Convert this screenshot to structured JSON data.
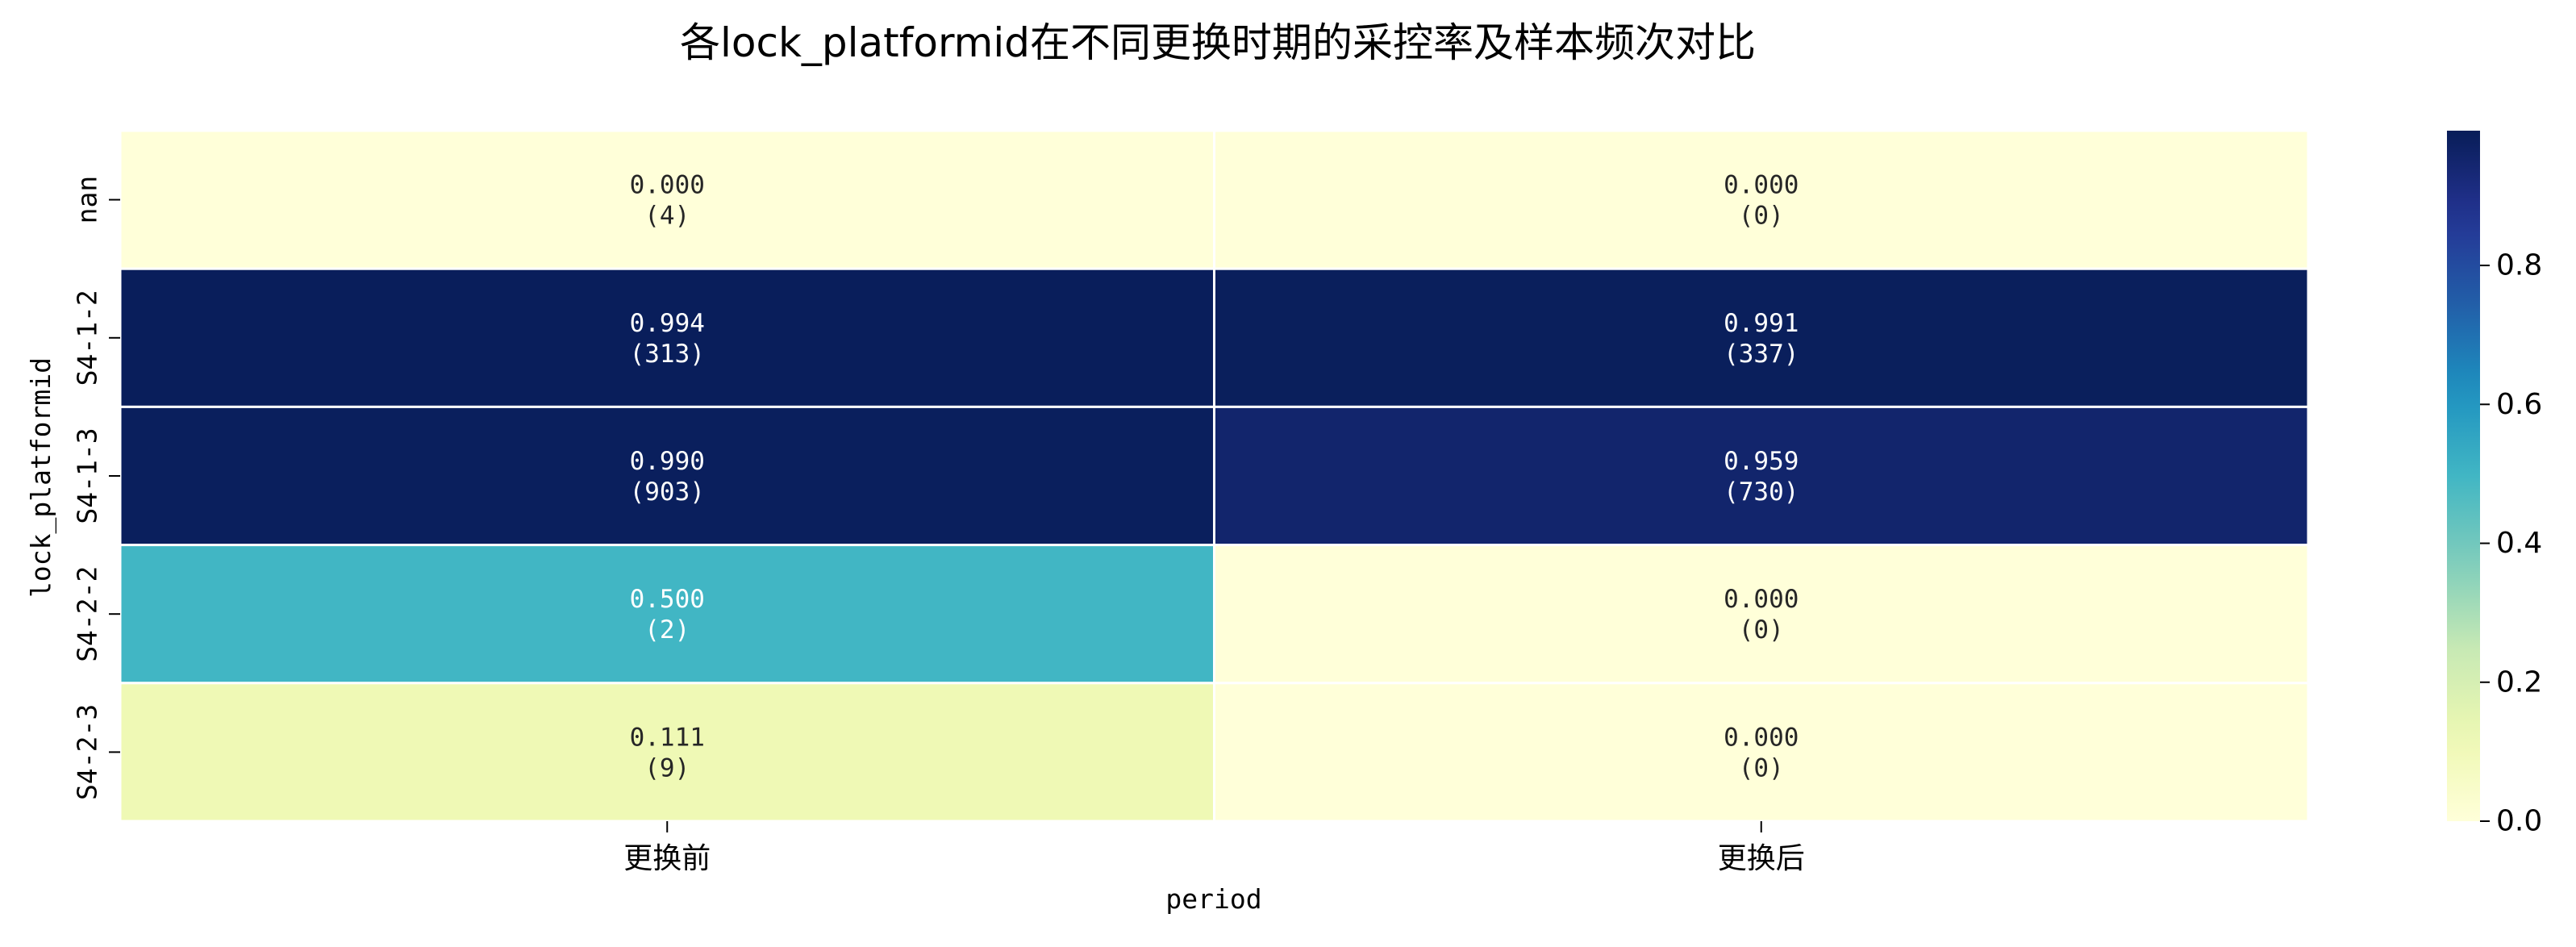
{
  "chart_data": {
    "type": "heatmap",
    "title": "各lock_platformid在不同更换时期的采控率及样本频次对比",
    "xlabel": "period",
    "ylabel": "lock_platformid",
    "x": [
      "更换前",
      "更换后"
    ],
    "y": [
      "nan",
      "S4-1-2",
      "S4-1-3",
      "S4-2-2",
      "S4-2-3"
    ],
    "values": [
      [
        0.0,
        0.0
      ],
      [
        0.994,
        0.991
      ],
      [
        0.99,
        0.959
      ],
      [
        0.5,
        0.0
      ],
      [
        0.111,
        0.0
      ]
    ],
    "cell_labels": [
      [
        {
          "value": "0.000",
          "count": "(4)"
        },
        {
          "value": "0.000",
          "count": "(0)"
        }
      ],
      [
        {
          "value": "0.994",
          "count": "(313)"
        },
        {
          "value": "0.991",
          "count": "(337)"
        }
      ],
      [
        {
          "value": "0.990",
          "count": "(903)"
        },
        {
          "value": "0.959",
          "count": "(730)"
        }
      ],
      [
        {
          "value": "0.500",
          "count": "(2)"
        },
        {
          "value": "0.000",
          "count": "(0)"
        }
      ],
      [
        {
          "value": "0.111",
          "count": "(9)"
        },
        {
          "value": "0.000",
          "count": "(0)"
        }
      ]
    ],
    "colorbar": {
      "colormap": "YlGnBu",
      "range": [
        0,
        1
      ],
      "ticks": [
        "0.0",
        "0.2",
        "0.4",
        "0.6",
        "0.8"
      ]
    }
  }
}
